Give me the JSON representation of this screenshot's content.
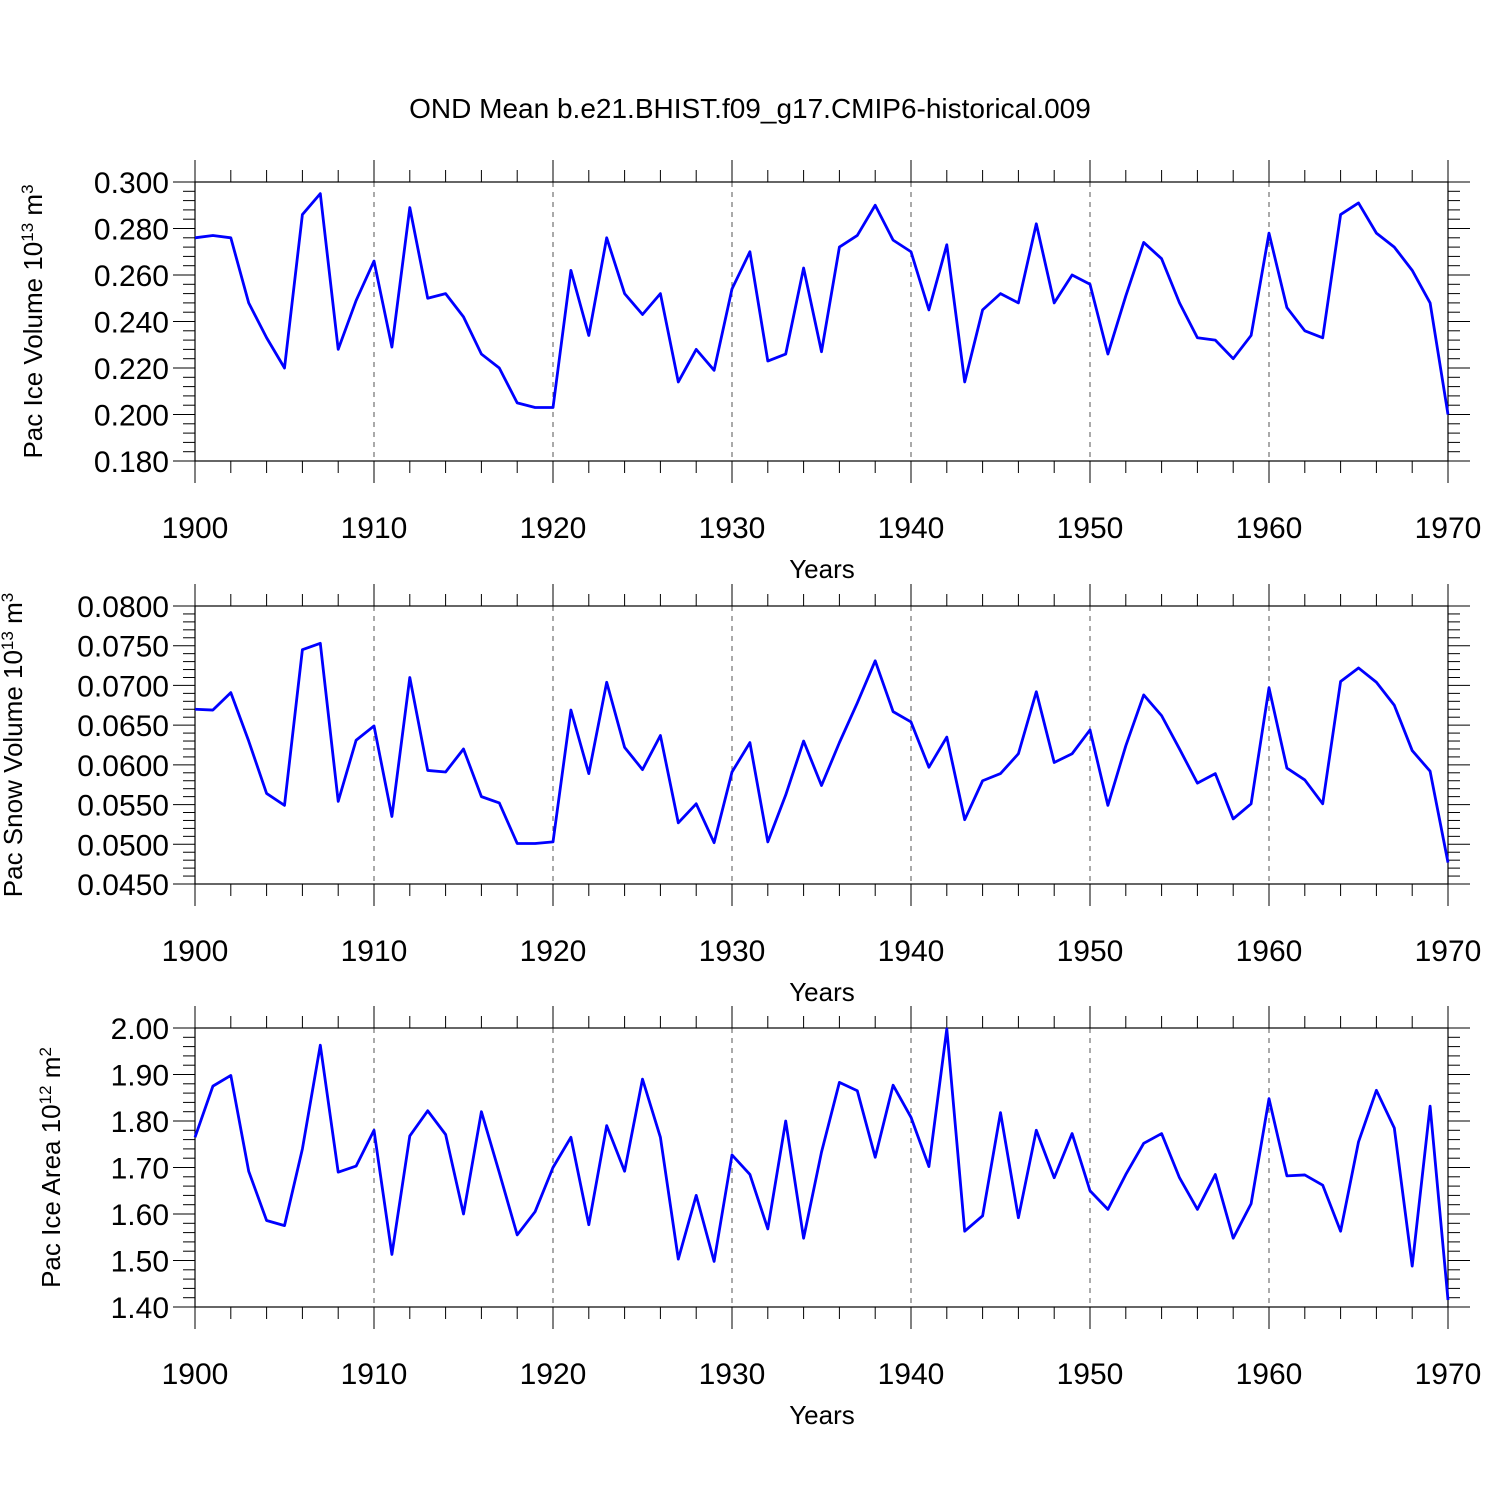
{
  "chart_data": {
    "title": "OND Mean b.e21.BHIST.f09_g17.CMIP6-historical.009",
    "line_color": "#0000ff",
    "panels": [
      {
        "type": "line",
        "ylabel": "Pac Ice Volume 10",
        "ylabel_exp": "13",
        "ylabel_unit": " m",
        "ylabel_unit_exp": "3",
        "xlabel": "Years",
        "xlim": [
          1900,
          1970
        ],
        "ylim": [
          0.18,
          0.3
        ],
        "xticks": [
          "1900",
          "1910",
          "1920",
          "1930",
          "1940",
          "1950",
          "1960",
          "1970"
        ],
        "yticks": [
          "0.180",
          "0.200",
          "0.220",
          "0.240",
          "0.260",
          "0.280",
          "0.300"
        ],
        "x_start": 1900,
        "values": [
          0.276,
          0.277,
          0.276,
          0.248,
          0.233,
          0.22,
          0.286,
          0.295,
          0.228,
          0.249,
          0.266,
          0.229,
          0.289,
          0.25,
          0.252,
          0.242,
          0.226,
          0.22,
          0.205,
          0.203,
          0.203,
          0.262,
          0.234,
          0.276,
          0.252,
          0.243,
          0.252,
          0.214,
          0.228,
          0.219,
          0.254,
          0.27,
          0.223,
          0.226,
          0.263,
          0.227,
          0.272,
          0.277,
          0.29,
          0.275,
          0.27,
          0.245,
          0.273,
          0.214,
          0.245,
          0.252,
          0.248,
          0.282,
          0.248,
          0.26,
          0.256,
          0.226,
          0.251,
          0.274,
          0.267,
          0.248,
          0.233,
          0.232,
          0.224,
          0.234,
          0.278,
          0.246,
          0.236,
          0.233,
          0.286,
          0.291,
          0.278,
          0.272,
          0.262,
          0.248,
          0.2
        ]
      },
      {
        "type": "line",
        "ylabel": "Pac Snow Volume 10",
        "ylabel_exp": "13",
        "ylabel_unit": " m",
        "ylabel_unit_exp": "3",
        "xlabel": "Years",
        "xlim": [
          1900,
          1970
        ],
        "ylim": [
          0.045,
          0.08
        ],
        "xticks": [
          "1900",
          "1910",
          "1920",
          "1930",
          "1940",
          "1950",
          "1960",
          "1970"
        ],
        "yticks": [
          "0.0450",
          "0.0500",
          "0.0550",
          "0.0600",
          "0.0650",
          "0.0700",
          "0.0750",
          "0.0800"
        ],
        "x_start": 1900,
        "values": [
          0.067,
          0.0669,
          0.0691,
          0.063,
          0.0564,
          0.0549,
          0.0745,
          0.0753,
          0.0554,
          0.0631,
          0.0649,
          0.0535,
          0.071,
          0.0593,
          0.0591,
          0.062,
          0.056,
          0.0552,
          0.0501,
          0.0501,
          0.0503,
          0.0669,
          0.0589,
          0.0704,
          0.0622,
          0.0594,
          0.0637,
          0.0527,
          0.0551,
          0.0502,
          0.0591,
          0.0628,
          0.0503,
          0.0562,
          0.063,
          0.0574,
          0.0628,
          0.0678,
          0.0731,
          0.0667,
          0.0654,
          0.0597,
          0.0635,
          0.0531,
          0.058,
          0.0589,
          0.0614,
          0.0692,
          0.0603,
          0.0614,
          0.0644,
          0.0549,
          0.0624,
          0.0688,
          0.0662,
          0.062,
          0.0577,
          0.0589,
          0.0532,
          0.0551,
          0.0697,
          0.0596,
          0.0581,
          0.0551,
          0.0705,
          0.0722,
          0.0704,
          0.0675,
          0.0618,
          0.0592,
          0.0477
        ]
      },
      {
        "type": "line",
        "ylabel": "Pac Ice Area 10",
        "ylabel_exp": "12",
        "ylabel_unit": " m",
        "ylabel_unit_exp": "2",
        "xlabel": "Years",
        "xlim": [
          1900,
          1970
        ],
        "ylim": [
          1.4,
          2.0
        ],
        "xticks": [
          "1900",
          "1910",
          "1920",
          "1930",
          "1940",
          "1950",
          "1960",
          "1970"
        ],
        "yticks": [
          "1.40",
          "1.50",
          "1.60",
          "1.70",
          "1.80",
          "1.90",
          "2.00"
        ],
        "x_start": 1900,
        "values": [
          1.765,
          1.875,
          1.898,
          1.692,
          1.586,
          1.575,
          1.74,
          1.963,
          1.69,
          1.703,
          1.78,
          1.513,
          1.768,
          1.822,
          1.771,
          1.6,
          1.82,
          1.689,
          1.555,
          1.605,
          1.7,
          1.765,
          1.577,
          1.79,
          1.692,
          1.89,
          1.765,
          1.503,
          1.64,
          1.498,
          1.727,
          1.685,
          1.568,
          1.8,
          1.548,
          1.733,
          1.883,
          1.865,
          1.722,
          1.877,
          1.808,
          1.702,
          1.998,
          1.563,
          1.596,
          1.818,
          1.592,
          1.78,
          1.678,
          1.773,
          1.65,
          1.61,
          1.685,
          1.752,
          1.773,
          1.678,
          1.61,
          1.685,
          1.548,
          1.622,
          1.848,
          1.682,
          1.684,
          1.662,
          1.563,
          1.755,
          1.866,
          1.785,
          1.488,
          1.832,
          1.415
        ]
      }
    ]
  }
}
